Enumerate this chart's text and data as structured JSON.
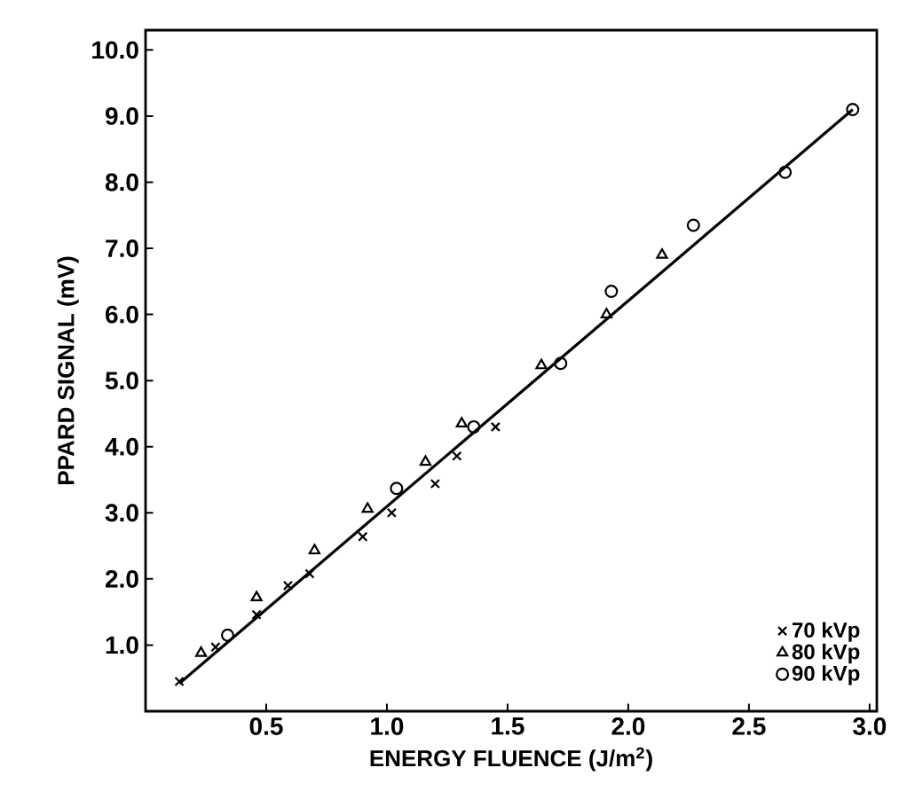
{
  "chart_data": {
    "type": "scatter",
    "xlabel": "ENERGY FLUENCE (J/m$^{2}$)",
    "ylabel": "PPARD SIGNAL (mV)",
    "xlim": [
      0,
      3.03
    ],
    "ylim": [
      0,
      10.3
    ],
    "xticks": [
      {
        "value": 0.5,
        "label": "0.5"
      },
      {
        "value": 1,
        "label": "1.0"
      },
      {
        "value": 1.5,
        "label": "1.5"
      },
      {
        "value": 2,
        "label": "2.0"
      },
      {
        "value": 2.5,
        "label": "2.5"
      },
      {
        "value": 3,
        "label": "3.0"
      }
    ],
    "yticks": [
      {
        "value": 1,
        "label": "1.0"
      },
      {
        "value": 2,
        "label": "2.0"
      },
      {
        "value": 3,
        "label": "3.0"
      },
      {
        "value": 4,
        "label": "4.0"
      },
      {
        "value": 5,
        "label": "5.0"
      },
      {
        "value": 6,
        "label": "6.0"
      },
      {
        "value": 7,
        "label": "7.0"
      },
      {
        "value": 8,
        "label": "8.0"
      },
      {
        "value": 9,
        "label": "9.0"
      },
      {
        "value": 10,
        "label": "10.0"
      }
    ],
    "legend": "bottom right",
    "grid": false,
    "series": [
      {
        "name": "70 kVp",
        "color": "#000000",
        "marker": "cross",
        "x": [
          0.14,
          0.29,
          0.46,
          0.59,
          0.68,
          0.9,
          1.02,
          1.2,
          1.29,
          1.45
        ],
        "values": [
          0.45,
          0.97,
          1.46,
          1.9,
          2.08,
          2.64,
          3.0,
          3.44,
          3.86,
          4.3
        ]
      },
      {
        "name": "80 kVp",
        "color": "#000000",
        "marker": "triangle",
        "x": [
          0.23,
          0.46,
          0.7,
          0.92,
          1.16,
          1.31,
          1.64,
          1.91,
          2.14
        ],
        "values": [
          0.88,
          1.72,
          2.43,
          3.06,
          3.77,
          4.35,
          5.23,
          6.0,
          6.9
        ]
      },
      {
        "name": "90 kVp",
        "color": "#000000",
        "marker": "circle",
        "x": [
          0.34,
          1.04,
          1.36,
          1.72,
          1.93,
          2.27,
          2.65,
          2.93
        ],
        "values": [
          1.15,
          3.37,
          4.3,
          5.26,
          6.35,
          7.35,
          8.15,
          9.1
        ]
      },
      {
        "type": "line",
        "color": "#000000",
        "marker": "none",
        "line_style": "solid",
        "x": [
          0.14,
          2.93
        ],
        "values": [
          0.42,
          9.1
        ]
      }
    ]
  }
}
